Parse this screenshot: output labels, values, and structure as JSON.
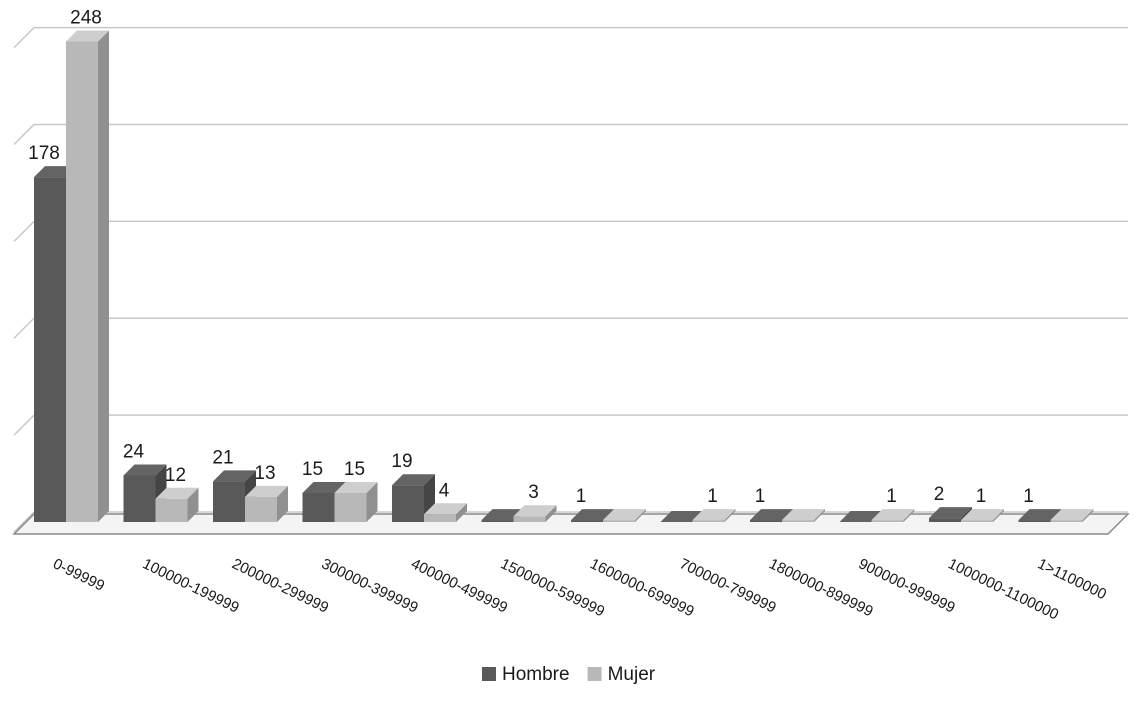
{
  "chart_data": {
    "type": "bar",
    "style": "3d-clustered-column",
    "title": "",
    "xlabel": "",
    "ylabel": "",
    "ylim": [
      0,
      250
    ],
    "grid": true,
    "legend_position": "bottom",
    "categories": [
      "0-99999",
      "100000-199999",
      "200000-299999",
      "300000-399999",
      "400000-499999",
      "1500000-599999",
      "1600000-699999",
      "700000-799999",
      "1800000-899999",
      "900000-999999",
      "1000000-1100000",
      "1>1100000"
    ],
    "series": [
      {
        "name": "Hombre",
        "color": "#595959",
        "values": [
          178,
          24,
          21,
          15,
          19,
          1,
          1,
          0,
          1,
          0,
          2,
          1
        ],
        "labels": [
          "178",
          "24",
          "21",
          "15",
          "19",
          "",
          "1",
          "",
          "1",
          "",
          "2",
          "1"
        ]
      },
      {
        "name": "Mujer",
        "color": "#b8b8b8",
        "values": [
          248,
          12,
          13,
          15,
          4,
          3,
          1,
          1,
          1,
          1,
          1,
          1
        ],
        "labels": [
          "248",
          "12",
          "13",
          "15",
          "4",
          "3",
          "",
          "1",
          "",
          "1",
          "1",
          ""
        ]
      }
    ]
  }
}
